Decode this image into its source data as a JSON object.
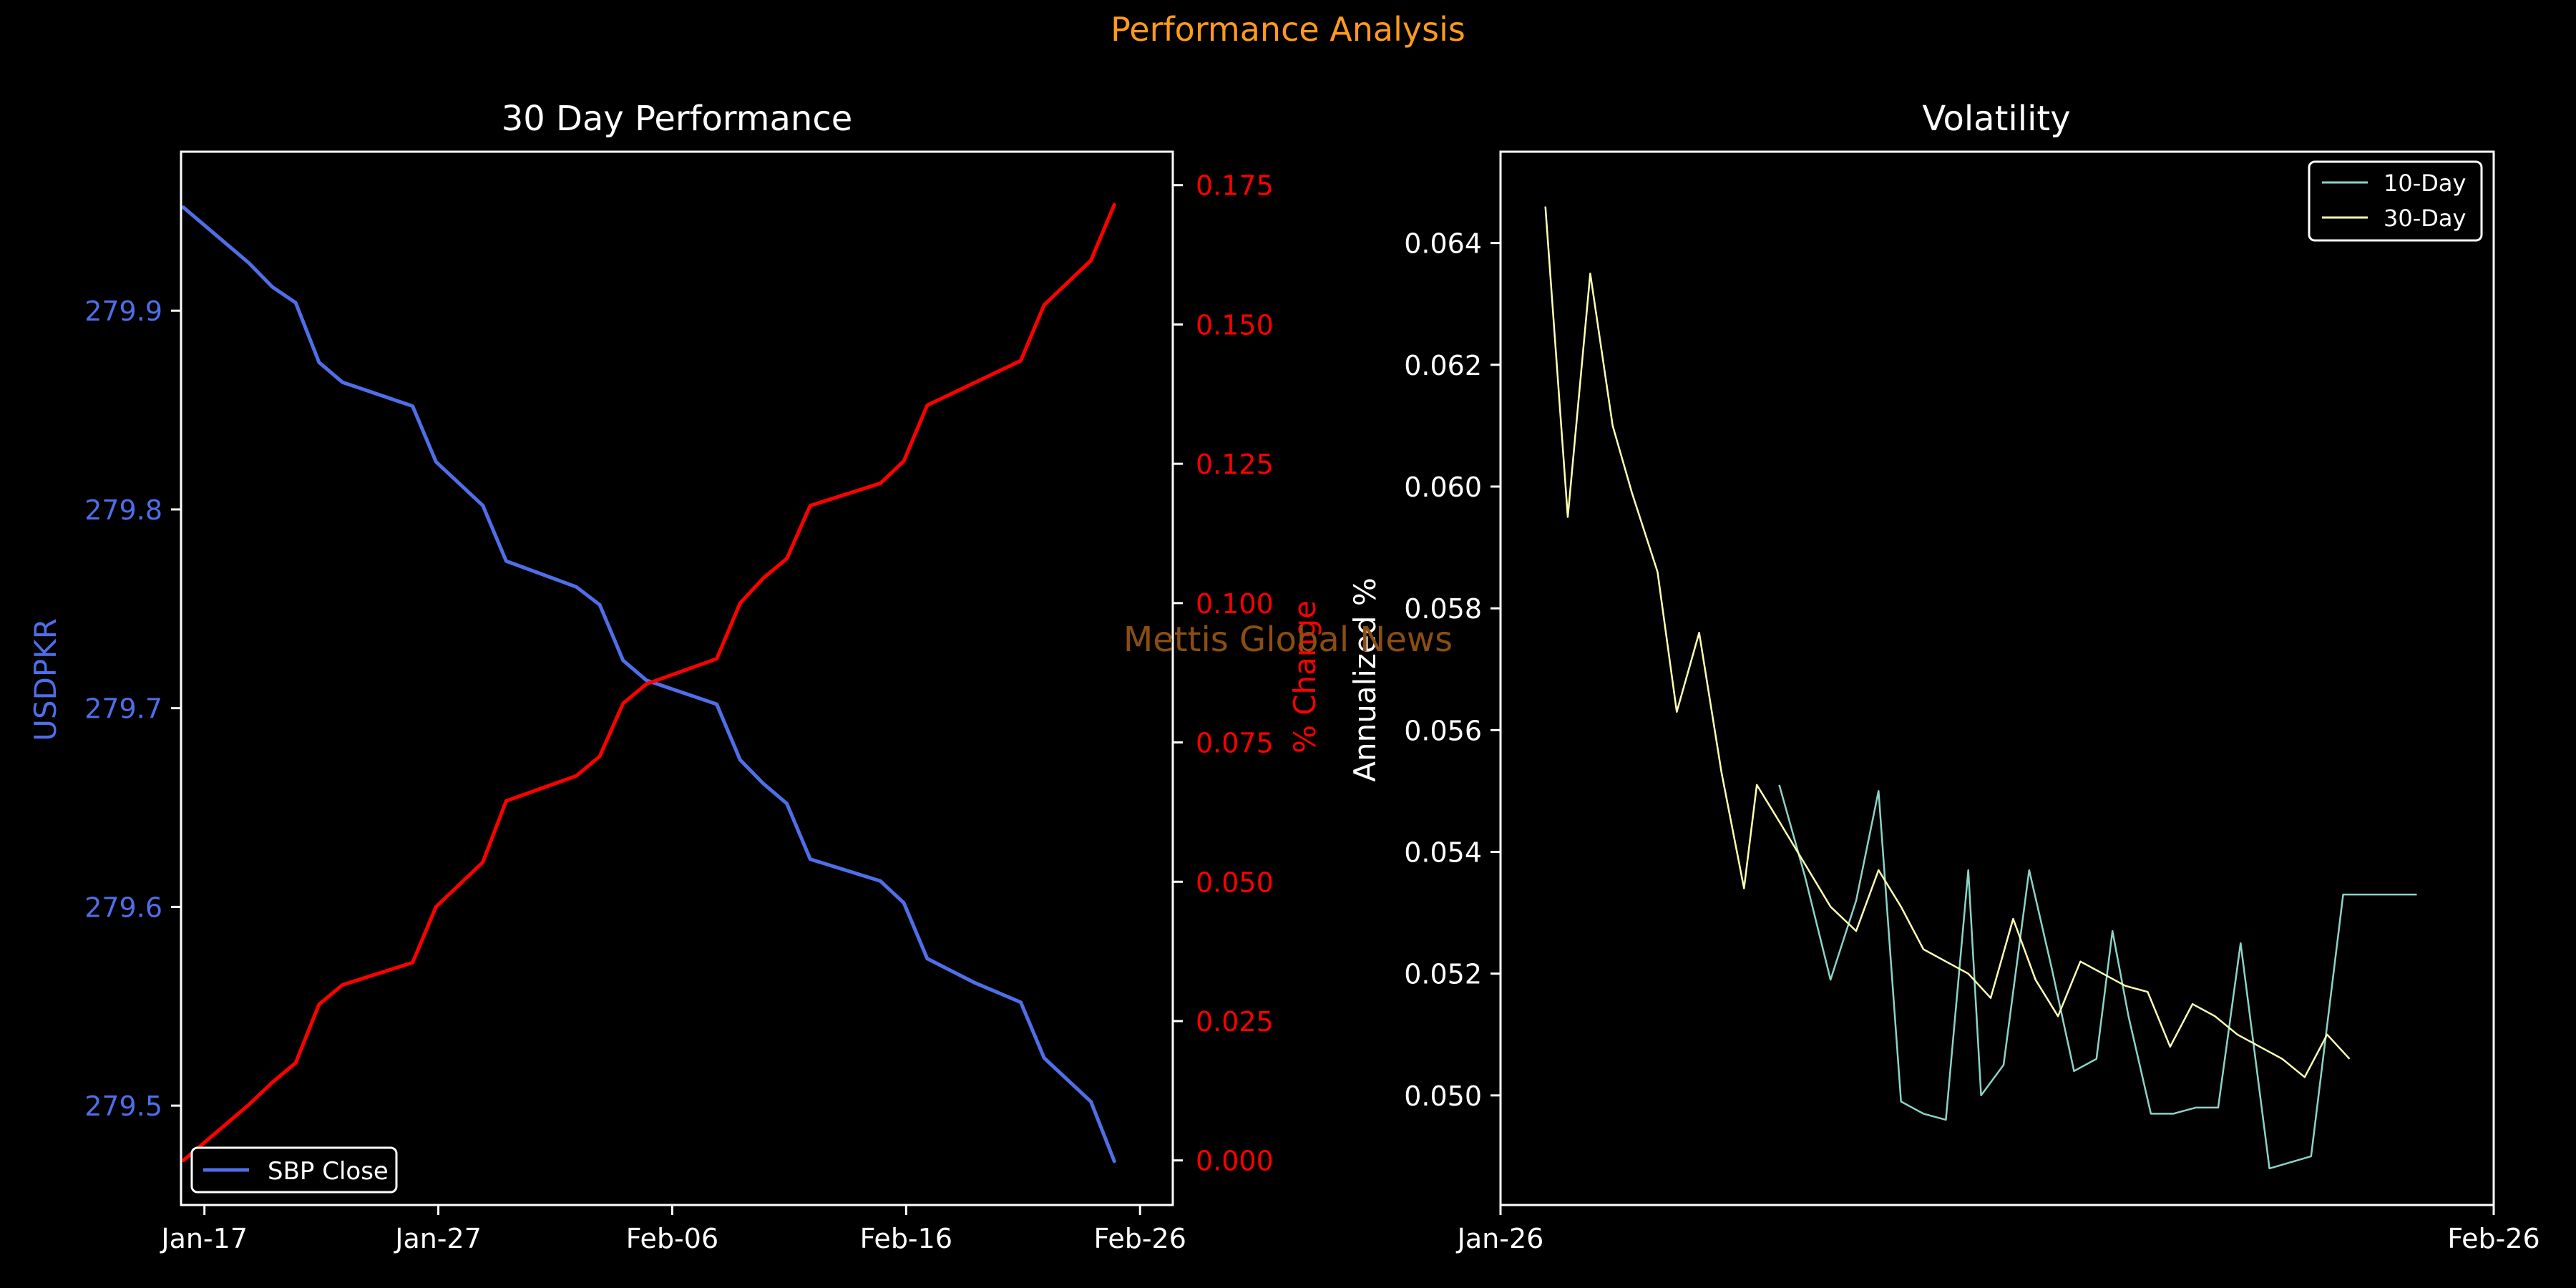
{
  "figure": {
    "suptitle": "Performance Analysis",
    "watermark": "Mettis Global News",
    "colors": {
      "background": "#000000",
      "suptitle": "#ff9a1f",
      "watermark": "#8a4e12",
      "axes": "#ffffff",
      "close": "#4f6ee8",
      "pct": "#ff0000",
      "vol10": "#8dd3c7",
      "vol30": "#ffffb3"
    }
  },
  "chart_data": [
    {
      "type": "line",
      "title": "30 Day Performance",
      "xlabel": "",
      "ylabel": "USDPKR",
      "ylabel_right": "% Change",
      "x_ticks": [
        "Jan-17",
        "Jan-27",
        "Feb-06",
        "Feb-16",
        "Feb-26"
      ],
      "x_tick_days": [
        17,
        27,
        37,
        47,
        57
      ],
      "xlim_days": [
        16,
        58.4
      ],
      "ylim": [
        279.45,
        279.98
      ],
      "y_ticks": [
        "279.5",
        "279.6",
        "279.7",
        "279.8",
        "279.9"
      ],
      "y_tick_values": [
        279.5,
        279.6,
        279.7,
        279.8,
        279.9
      ],
      "ylim_right": [
        -0.008,
        0.181
      ],
      "y_ticks_right": [
        "0.000",
        "0.025",
        "0.050",
        "0.075",
        "0.100",
        "0.125",
        "0.150",
        "0.175"
      ],
      "y_tick_values_right": [
        0,
        0.025,
        0.05,
        0.075,
        0.1,
        0.125,
        0.15,
        0.175
      ],
      "legend": [
        "SBP Close"
      ],
      "legend_position": "lower-left",
      "series": [
        {
          "name": "SBP Close",
          "axis": "left",
          "x": [
            16.1,
            18.9,
            19.9,
            20.9,
            21.9,
            22.9,
            25.9,
            26.9,
            28.9,
            29.9,
            32.9,
            33.9,
            34.9,
            35.9,
            38.9,
            39.9,
            40.9,
            41.9,
            42.9,
            45.9,
            46.9,
            47.9,
            49.9,
            51.9,
            52.9,
            54.9,
            55.9
          ],
          "values": [
            279.952,
            279.924,
            279.912,
            279.904,
            279.874,
            279.864,
            279.852,
            279.824,
            279.802,
            279.774,
            279.761,
            279.752,
            279.724,
            279.714,
            279.702,
            279.674,
            279.662,
            279.652,
            279.624,
            279.613,
            279.602,
            279.574,
            279.562,
            279.552,
            279.524,
            279.502,
            279.472
          ]
        },
        {
          "name": "% Change",
          "axis": "right",
          "x": [
            16.1,
            18.9,
            19.9,
            20.9,
            21.9,
            22.9,
            25.9,
            26.9,
            28.9,
            29.9,
            32.9,
            33.9,
            34.9,
            35.9,
            38.9,
            39.9,
            40.9,
            41.9,
            42.9,
            45.9,
            46.9,
            47.9,
            49.9,
            51.9,
            52.9,
            54.9,
            55.9
          ],
          "values": [
            0.0,
            0.01,
            0.014,
            0.0175,
            0.028,
            0.0315,
            0.0355,
            0.0455,
            0.0535,
            0.0645,
            0.069,
            0.0725,
            0.082,
            0.0855,
            0.09,
            0.1,
            0.1045,
            0.108,
            0.1175,
            0.1215,
            0.1255,
            0.1355,
            0.1395,
            0.1435,
            0.1535,
            0.1615,
            0.1715
          ]
        }
      ]
    },
    {
      "type": "line",
      "title": "Volatility",
      "xlabel": "",
      "ylabel": "Annualized %",
      "x_ticks": [
        "Jan-26",
        "Feb-26"
      ],
      "x_tick_days": [
        26,
        57
      ],
      "xlim_days": [
        26,
        57
      ],
      "ylim": [
        0.0482,
        0.0655
      ],
      "y_ticks": [
        "0.050",
        "0.052",
        "0.054",
        "0.056",
        "0.058",
        "0.060",
        "0.062",
        "0.064"
      ],
      "y_tick_values": [
        0.05,
        0.052,
        0.054,
        0.056,
        0.058,
        0.06,
        0.062,
        0.064
      ],
      "legend": [
        "10-Day",
        "30-Day"
      ],
      "legend_position": "upper-right",
      "series": [
        {
          "name": "10-Day",
          "x": [
            34.7,
            35.5,
            36.3,
            37.1,
            37.8,
            38.5,
            39.2,
            39.9,
            40.6,
            41.0,
            41.7,
            42.5,
            43.2,
            43.9,
            44.6,
            45.1,
            45.6,
            46.3,
            47.0,
            47.7,
            48.4,
            49.1,
            50.0,
            51.3,
            52.3,
            52.6,
            53.3,
            53.8,
            54.1,
            54.6
          ],
          "values": [
            0.0551,
            0.0536,
            0.0519,
            0.0532,
            0.055,
            0.0499,
            0.0497,
            0.0496,
            0.0537,
            0.05,
            0.0505,
            0.0537,
            0.0521,
            0.0504,
            0.0506,
            0.0527,
            0.0513,
            0.0497,
            0.0497,
            0.0498,
            0.0498,
            0.0525,
            0.0488,
            0.049,
            0.0533,
            0.0533,
            0.0533,
            0.0533,
            0.0533,
            0.0533
          ]
        },
        {
          "name": "30-Day",
          "x": [
            27.4,
            28.1,
            28.8,
            29.5,
            30.1,
            30.9,
            31.5,
            32.2,
            32.9,
            33.6,
            34.0,
            34.7,
            35.5,
            36.3,
            37.1,
            37.8,
            38.5,
            39.2,
            39.9,
            40.6,
            41.3,
            42.0,
            42.7,
            43.4,
            44.1,
            44.8,
            45.5,
            46.2,
            46.9,
            47.6,
            48.3,
            49.0,
            49.7,
            50.4,
            51.1,
            51.8,
            52.5
          ],
          "values": [
            0.0646,
            0.0595,
            0.0635,
            0.061,
            0.0599,
            0.0586,
            0.0563,
            0.0576,
            0.0553,
            0.0534,
            0.0551,
            0.0545,
            0.0538,
            0.0531,
            0.0527,
            0.0537,
            0.0531,
            0.0524,
            0.0522,
            0.052,
            0.0516,
            0.0529,
            0.0519,
            0.0513,
            0.0522,
            0.052,
            0.0518,
            0.0517,
            0.0508,
            0.0515,
            0.0513,
            0.051,
            0.0508,
            0.0506,
            0.0503,
            0.051,
            0.0506
          ]
        }
      ]
    }
  ]
}
